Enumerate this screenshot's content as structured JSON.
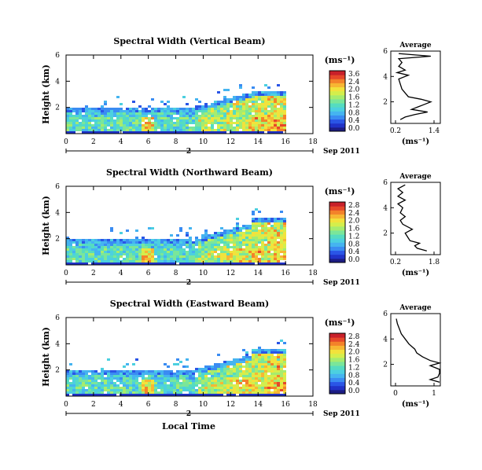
{
  "colorbar_colors": [
    "#1c1c84",
    "#2032c8",
    "#2a55e6",
    "#3a8cf2",
    "#45b4f0",
    "#4cd0e0",
    "#55dcc0",
    "#7ae69a",
    "#a6ec6e",
    "#d4ee4c",
    "#f2e23c",
    "#f7b633",
    "#f3822a",
    "#e6482a",
    "#c8202a"
  ],
  "chart_data": [
    {
      "type": "heatmap",
      "title": "Spectral Width (Vertical Beam)",
      "ylabel": "Height (km)",
      "yticks": [
        "6",
        "4",
        "2"
      ],
      "xticks": [
        "0",
        "2",
        "4",
        "6",
        "8",
        "10",
        "12",
        "14",
        "16",
        "18"
      ],
      "xlim": [
        0,
        18
      ],
      "ylim": [
        0,
        6
      ],
      "date_marker": "2",
      "date_label": "Sep 2011",
      "colorbar": {
        "unit_label": "(ms⁻¹)",
        "ticks": [
          "3.6",
          "2.4",
          "2.0",
          "1.6",
          "1.2",
          "0.8",
          "0.4",
          "0.0"
        ]
      },
      "average": {
        "title": "Average",
        "xticks": [
          "0.2",
          "1.4"
        ],
        "xlabel": "(ms⁻¹)",
        "yticks": [
          "6",
          "4",
          "2"
        ],
        "profile": [
          [
            0.35,
            0.6
          ],
          [
            0.5,
            0.8
          ],
          [
            0.8,
            1.0
          ],
          [
            1.2,
            1.2
          ],
          [
            0.7,
            1.4
          ],
          [
            0.9,
            1.6
          ],
          [
            1.1,
            1.8
          ],
          [
            1.3,
            2.0
          ],
          [
            1.0,
            2.2
          ],
          [
            0.6,
            2.4
          ],
          [
            0.5,
            2.7
          ],
          [
            0.4,
            3.0
          ],
          [
            0.35,
            3.4
          ],
          [
            0.3,
            3.8
          ],
          [
            0.6,
            4.1
          ],
          [
            0.25,
            4.3
          ],
          [
            0.5,
            4.5
          ],
          [
            0.3,
            4.8
          ],
          [
            0.4,
            5.1
          ],
          [
            0.3,
            5.4
          ],
          [
            1.3,
            5.6
          ],
          [
            0.3,
            5.8
          ]
        ]
      }
    },
    {
      "type": "heatmap",
      "title": "Spectral Width (Northward Beam)",
      "ylabel": "Height (km)",
      "yticks": [
        "6",
        "4",
        "2"
      ],
      "xticks": [
        "0",
        "2",
        "4",
        "6",
        "8",
        "10",
        "12",
        "14",
        "16",
        "18"
      ],
      "xlim": [
        0,
        18
      ],
      "ylim": [
        0,
        6
      ],
      "date_marker": "2",
      "date_label": "Sep 2011",
      "colorbar": {
        "unit_label": "(ms⁻¹)",
        "ticks": [
          "2.8",
          "2.4",
          "2.0",
          "1.6",
          "1.2",
          "0.8",
          "0.4",
          "0.0"
        ]
      },
      "average": {
        "title": "Average",
        "xticks": [
          "0.2",
          "1.8"
        ],
        "xlabel": "(ms⁻¹)",
        "yticks": [
          "6",
          "4",
          "2"
        ],
        "profile": [
          [
            1.5,
            0.6
          ],
          [
            1.1,
            0.8
          ],
          [
            1.0,
            1.0
          ],
          [
            1.2,
            1.2
          ],
          [
            0.8,
            1.4
          ],
          [
            0.7,
            1.7
          ],
          [
            0.6,
            2.0
          ],
          [
            0.9,
            2.3
          ],
          [
            0.5,
            2.7
          ],
          [
            0.4,
            3.0
          ],
          [
            0.6,
            3.3
          ],
          [
            0.4,
            3.6
          ],
          [
            0.5,
            4.0
          ],
          [
            0.3,
            4.3
          ],
          [
            0.6,
            4.6
          ],
          [
            0.3,
            4.9
          ],
          [
            0.5,
            5.2
          ],
          [
            0.3,
            5.5
          ],
          [
            0.6,
            5.8
          ]
        ]
      }
    },
    {
      "type": "heatmap",
      "title": "Spectral Width (Eastward Beam)",
      "ylabel": "Height (km)",
      "yticks": [
        "6",
        "4",
        "2"
      ],
      "xticks": [
        "0",
        "2",
        "4",
        "6",
        "8",
        "10",
        "12",
        "14",
        "16",
        "18"
      ],
      "xlabel": "Local Time",
      "xlim": [
        0,
        18
      ],
      "ylim": [
        0,
        6
      ],
      "date_marker": "2",
      "date_label": "Sep 2011",
      "colorbar": {
        "unit_label": "(ms⁻¹)",
        "ticks": [
          "2.8",
          "2.4",
          "2.0",
          "1.6",
          "1.2",
          "0.8",
          "0.4",
          "0.0"
        ]
      },
      "average": {
        "title": "Average",
        "xticks": [
          "0",
          "1"
        ],
        "xlabel": "(ms⁻¹)",
        "yticks": [
          "6",
          "4",
          "2"
        ],
        "profile": [
          [
            1.3,
            0.6
          ],
          [
            0.9,
            0.8
          ],
          [
            1.1,
            1.0
          ],
          [
            1.4,
            1.3
          ],
          [
            1.2,
            1.6
          ],
          [
            0.9,
            1.9
          ],
          [
            1.5,
            2.1
          ],
          [
            0.9,
            2.3
          ],
          [
            0.7,
            2.6
          ],
          [
            0.55,
            2.9
          ],
          [
            0.5,
            3.2
          ],
          [
            0.35,
            3.6
          ],
          [
            0.25,
            4.0
          ],
          [
            0.15,
            4.4
          ],
          [
            0.1,
            4.8
          ],
          [
            0.05,
            5.2
          ],
          [
            0.02,
            5.6
          ]
        ]
      }
    }
  ]
}
